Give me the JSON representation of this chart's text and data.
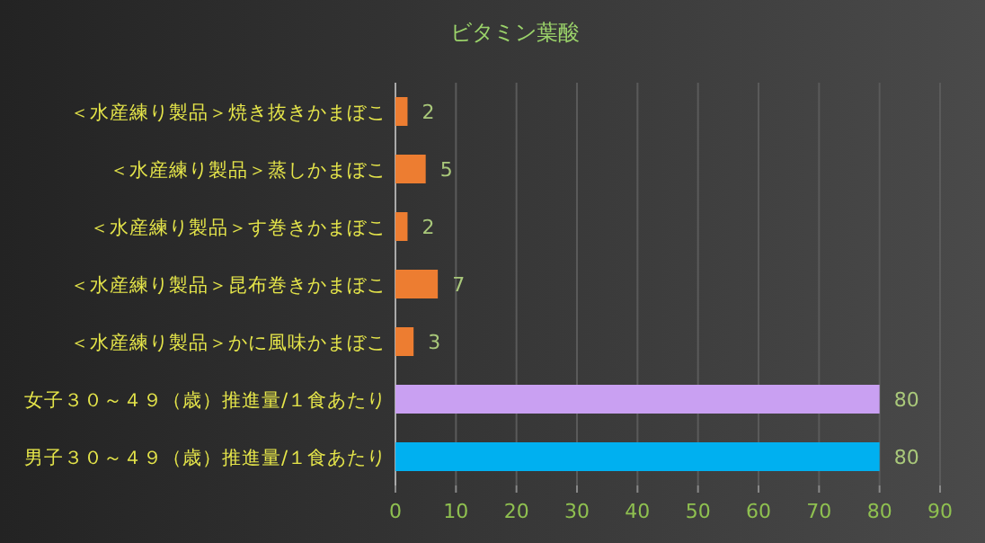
{
  "chart_data": {
    "type": "bar",
    "orientation": "horizontal",
    "title": "ビタミン葉酸",
    "categories": [
      "＜水産練り製品＞焼き抜きかまぼこ",
      "＜水産練り製品＞蒸しかまぼこ",
      "＜水産練り製品＞す巻きかまぼこ",
      "＜水産練り製品＞昆布巻きかまぼこ",
      "＜水産練り製品＞かに風味かまぼこ",
      "女子３０～４９（歳）推進量/１食あたり",
      "男子３０～４９（歳）推進量/１食あたり"
    ],
    "values": [
      2,
      5,
      2,
      7,
      3,
      80,
      80
    ],
    "colors": [
      "#ed7d31",
      "#ed7d31",
      "#ed7d31",
      "#ed7d31",
      "#ed7d31",
      "#c9a0f2",
      "#00b0f0"
    ],
    "xlim": [
      0,
      90
    ],
    "xticks": [
      0,
      10,
      20,
      30,
      40,
      50,
      60,
      70,
      80,
      90
    ],
    "grid": "x",
    "data_labels": true
  }
}
